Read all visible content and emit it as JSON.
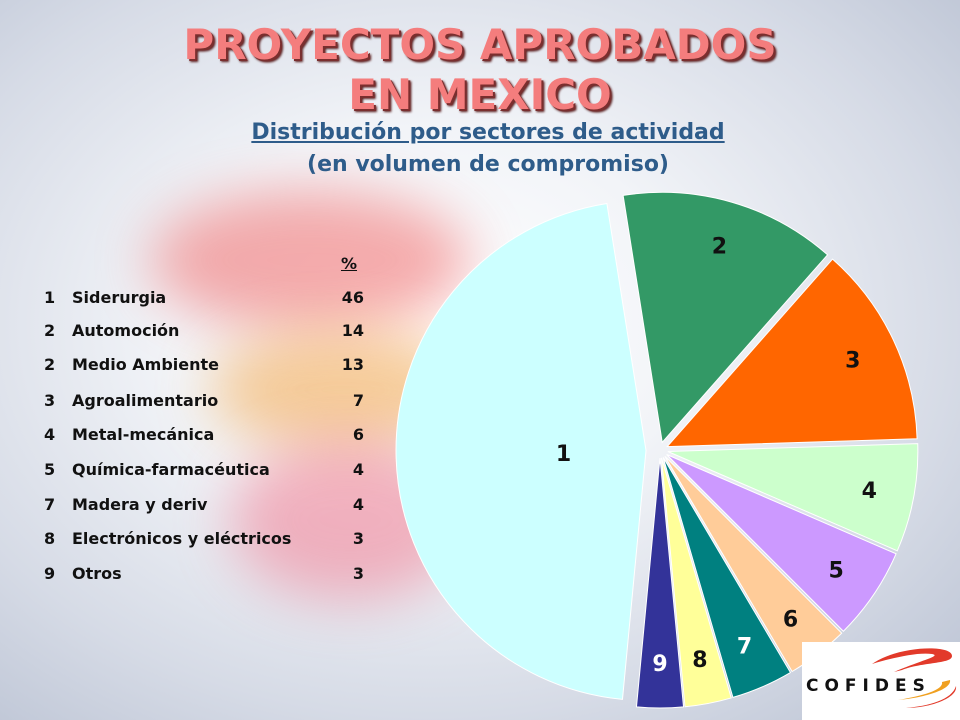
{
  "title": {
    "line1": "PROYECTOS APROBADOS",
    "line2": "EN MEXICO"
  },
  "subtitle": {
    "line1": "Distribución por sectores de actividad",
    "line2": "(en volumen de compromiso)"
  },
  "legend": {
    "header": "%",
    "rows": [
      {
        "num": "1",
        "name": "Siderurgia",
        "pct": "46"
      },
      {
        "num": "2",
        "name": "Automoción",
        "pct": "14"
      },
      {
        "num": "2",
        "name": "Medio Ambiente",
        "pct": "13"
      },
      {
        "num": "3",
        "name": "Agroalimentario",
        "pct": "7"
      },
      {
        "num": "4",
        "name": "Metal-mecánica",
        "pct": "6"
      },
      {
        "num": "5",
        "name": "Química-farmacéutica",
        "pct": "4"
      },
      {
        "num": "7",
        "name": "Madera y deriv",
        "pct": "4"
      },
      {
        "num": "8",
        "name": "Electrónicos y eléctricos",
        "pct": "3"
      },
      {
        "num": "9",
        "name": "Otros",
        "pct": "3"
      }
    ]
  },
  "logo": {
    "text": "COFIDES"
  },
  "chart_data": {
    "type": "pie",
    "title": "Distribución por sectores de actividad",
    "slices": [
      {
        "label": "1",
        "value": 46,
        "color": "#ccffff",
        "label_color": "#111111"
      },
      {
        "label": "2",
        "value": 14,
        "color": "#339966",
        "label_color": "#111111"
      },
      {
        "label": "3",
        "value": 13,
        "color": "#ff6600",
        "label_color": "#111111"
      },
      {
        "label": "4",
        "value": 7,
        "color": "#ccffcc",
        "label_color": "#111111"
      },
      {
        "label": "5",
        "value": 6,
        "color": "#cc99ff",
        "label_color": "#111111"
      },
      {
        "label": "6",
        "value": 4,
        "color": "#ffcc99",
        "label_color": "#111111"
      },
      {
        "label": "7",
        "value": 4,
        "color": "#008080",
        "label_color": "#ffffff"
      },
      {
        "label": "8",
        "value": 3,
        "color": "#ffff99",
        "label_color": "#111111"
      },
      {
        "label": "9",
        "value": 3,
        "color": "#333399",
        "label_color": "#ffffff"
      }
    ]
  }
}
